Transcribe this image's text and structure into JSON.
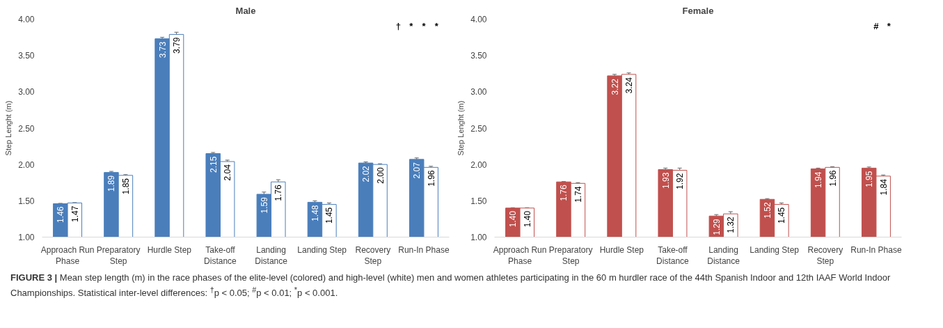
{
  "chart_data": [
    {
      "type": "bar",
      "title": "Male",
      "ylabel": "Step Lenght (m)",
      "categories": [
        "Approach Run Phase",
        "Preparatory Step",
        "Hurdle Step",
        "Take-off Distance",
        "Landing Distance",
        "Landing Step",
        "Recovery Step",
        "Run-In Phase"
      ],
      "series": [
        {
          "color": "#4a7ebb",
          "values": [
            1.46,
            1.89,
            3.73,
            2.15,
            1.59,
            1.48,
            2.02,
            2.07
          ],
          "value_labels": [
            "1.46",
            "1.89",
            "3.73",
            "2.15",
            "1.59",
            "1.48",
            "2.02",
            "2.07"
          ],
          "errors": [
            0.005,
            0.015,
            0.02,
            0.015,
            0.03,
            0.02,
            0.015,
            0.02
          ]
        },
        {
          "color": "#ffffff",
          "values": [
            1.47,
            1.85,
            3.79,
            2.04,
            1.76,
            1.45,
            2.0,
            1.96
          ],
          "value_labels": [
            "1.47",
            "1.85",
            "3.79",
            "2.04",
            "1.76",
            "1.45",
            "2.00",
            "1.96"
          ],
          "errors": [
            0.005,
            0.01,
            0.03,
            0.02,
            0.03,
            0.02,
            0.01,
            0.015
          ]
        }
      ],
      "ylim": [
        1,
        4
      ],
      "yticks": [
        {
          "value": 1,
          "label": "1.00"
        },
        {
          "value": 1.5,
          "label": "1.50"
        },
        {
          "value": 2,
          "label": "2.00"
        },
        {
          "value": 2.5,
          "label": "2.50"
        },
        {
          "value": 3,
          "label": "3.00"
        },
        {
          "value": 3.5,
          "label": "3.50"
        },
        {
          "value": 4,
          "label": "4.00"
        }
      ],
      "annotations": [
        "†",
        "*",
        "*",
        "*",
        "FIGURE 3 | Mean step length (m) in the race phases of the elite-level (colored) and high-level (white) men and women athletes participating in the 60 m hurdler race of the 44th Spanish Indoor and 12th IAAF World Indoor Championships. Statistical inter-level differences: $^{†}$p < 0.05; $^{#}$p < 0.01; $^{*}$p < 0.001."
      ]
    },
    {
      "type": "bar",
      "title": "Female",
      "ylabel": "Step Lenght (m)",
      "categories": [
        "Approach Run Phase",
        "Preparatory Step",
        "Hurdle Step",
        "Take-off Distance",
        "Landing Distance",
        "Landing Step",
        "Recovery Step",
        "Run-In Phase"
      ],
      "series": [
        {
          "color": "#c0504d",
          "values": [
            1.4,
            1.76,
            3.22,
            1.93,
            1.29,
            1.52,
            1.94,
            1.95
          ],
          "value_labels": [
            "1.40",
            "1.76",
            "3.22",
            "1.93",
            "1.29",
            "1.52",
            "1.94",
            "1.95"
          ],
          "errors": [
            0.005,
            0.005,
            0.02,
            0.02,
            0.02,
            0.01,
            0.01,
            0.015
          ]
        },
        {
          "color": "#ffffff",
          "values": [
            1.4,
            1.74,
            3.24,
            1.92,
            1.32,
            1.45,
            1.96,
            1.84
          ],
          "value_labels": [
            "1.40",
            "1.74",
            "3.24",
            "1.92",
            "1.32",
            "1.45",
            "1.96",
            "1.84"
          ],
          "errors": [
            0.005,
            0.01,
            0.02,
            0.03,
            0.03,
            0.02,
            0.01,
            0.015
          ]
        }
      ],
      "ylim": [
        1,
        4
      ],
      "yticks": [
        {
          "value": 1,
          "label": "1.00"
        },
        {
          "value": 1.5,
          "label": "1.50"
        },
        {
          "value": 2,
          "label": "2.00"
        },
        {
          "value": 2.5,
          "label": "2.50"
        },
        {
          "value": 3,
          "label": "3.00"
        },
        {
          "value": 3.5,
          "label": "3.50"
        },
        {
          "value": 4,
          "label": "4.00"
        }
      ],
      "annotations": [
        "#",
        "*"
      ]
    }
  ]
}
